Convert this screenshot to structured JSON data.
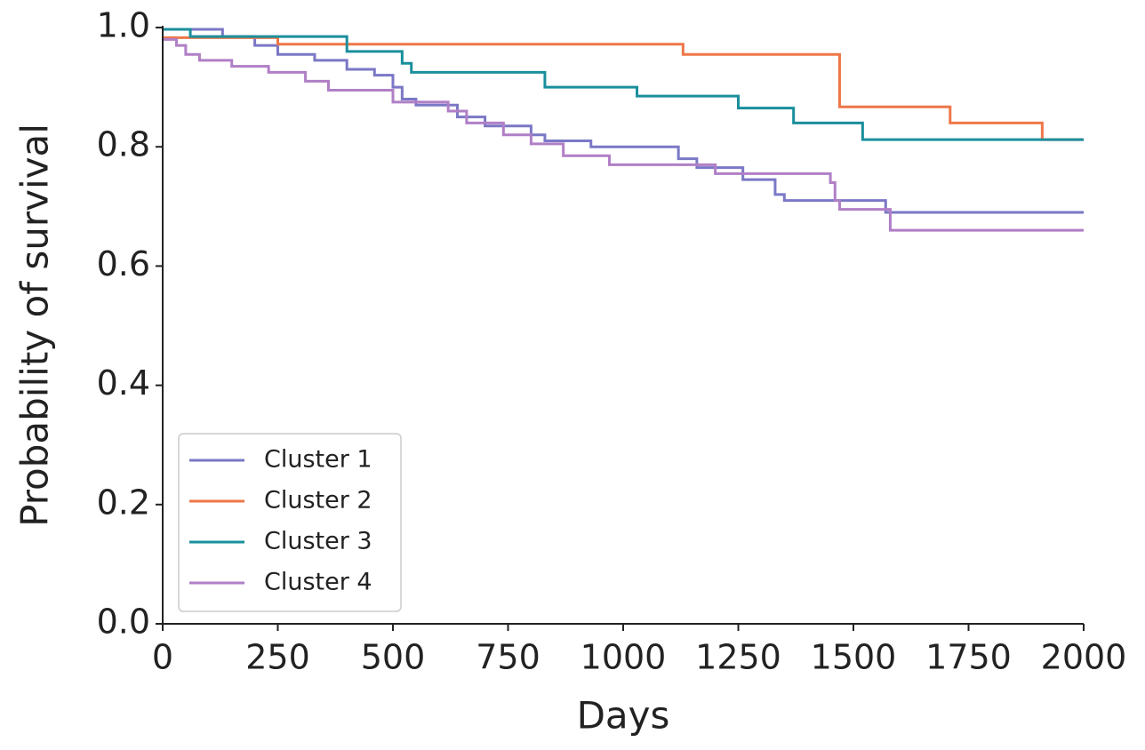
{
  "chart_data": {
    "type": "line",
    "drawstyle": "steps-post",
    "xlabel": "Days",
    "ylabel": "Probability of survival",
    "xlim": [
      0,
      2000
    ],
    "ylim": [
      0,
      1.0
    ],
    "xticks": [
      0,
      250,
      500,
      750,
      1000,
      1250,
      1500,
      1750,
      2000
    ],
    "yticks": [
      {
        "value": 0,
        "label": "0.0"
      },
      0.2,
      0.4,
      0.6,
      0.8,
      {
        "value": 1,
        "label": "1.0"
      }
    ],
    "legend": "lower left",
    "series": [
      {
        "name": "Cluster 1",
        "color": "#7b78c6",
        "x": [
          0,
          130,
          200,
          250,
          330,
          400,
          460,
          500,
          520,
          550,
          640,
          700,
          800,
          830,
          930,
          1120,
          1160,
          1260,
          1330,
          1350,
          1570,
          2000
        ],
        "values": [
          0.997,
          0.985,
          0.97,
          0.955,
          0.945,
          0.93,
          0.92,
          0.9,
          0.88,
          0.87,
          0.85,
          0.835,
          0.82,
          0.81,
          0.8,
          0.78,
          0.765,
          0.745,
          0.72,
          0.71,
          0.69,
          0.69
        ]
      },
      {
        "name": "Cluster 2",
        "color": "#ee7748",
        "x": [
          0,
          250,
          1130,
          1470,
          1710,
          1910,
          2000
        ],
        "values": [
          0.983,
          0.972,
          0.955,
          0.867,
          0.84,
          0.812,
          0.812
        ]
      },
      {
        "name": "Cluster 3",
        "color": "#1a8f9c",
        "x": [
          0,
          60,
          400,
          520,
          540,
          830,
          1030,
          1250,
          1370,
          1520,
          2000
        ],
        "values": [
          0.997,
          0.985,
          0.96,
          0.94,
          0.925,
          0.9,
          0.885,
          0.865,
          0.84,
          0.812,
          0.812
        ]
      },
      {
        "name": "Cluster 4",
        "color": "#b07fc6",
        "x": [
          0,
          30,
          50,
          80,
          150,
          230,
          310,
          360,
          500,
          620,
          660,
          740,
          800,
          870,
          970,
          1200,
          1450,
          1460,
          1470,
          1580,
          2000
        ],
        "values": [
          0.98,
          0.97,
          0.955,
          0.945,
          0.935,
          0.925,
          0.91,
          0.895,
          0.875,
          0.86,
          0.84,
          0.82,
          0.805,
          0.785,
          0.77,
          0.755,
          0.74,
          0.71,
          0.695,
          0.66,
          0.66
        ]
      }
    ]
  }
}
